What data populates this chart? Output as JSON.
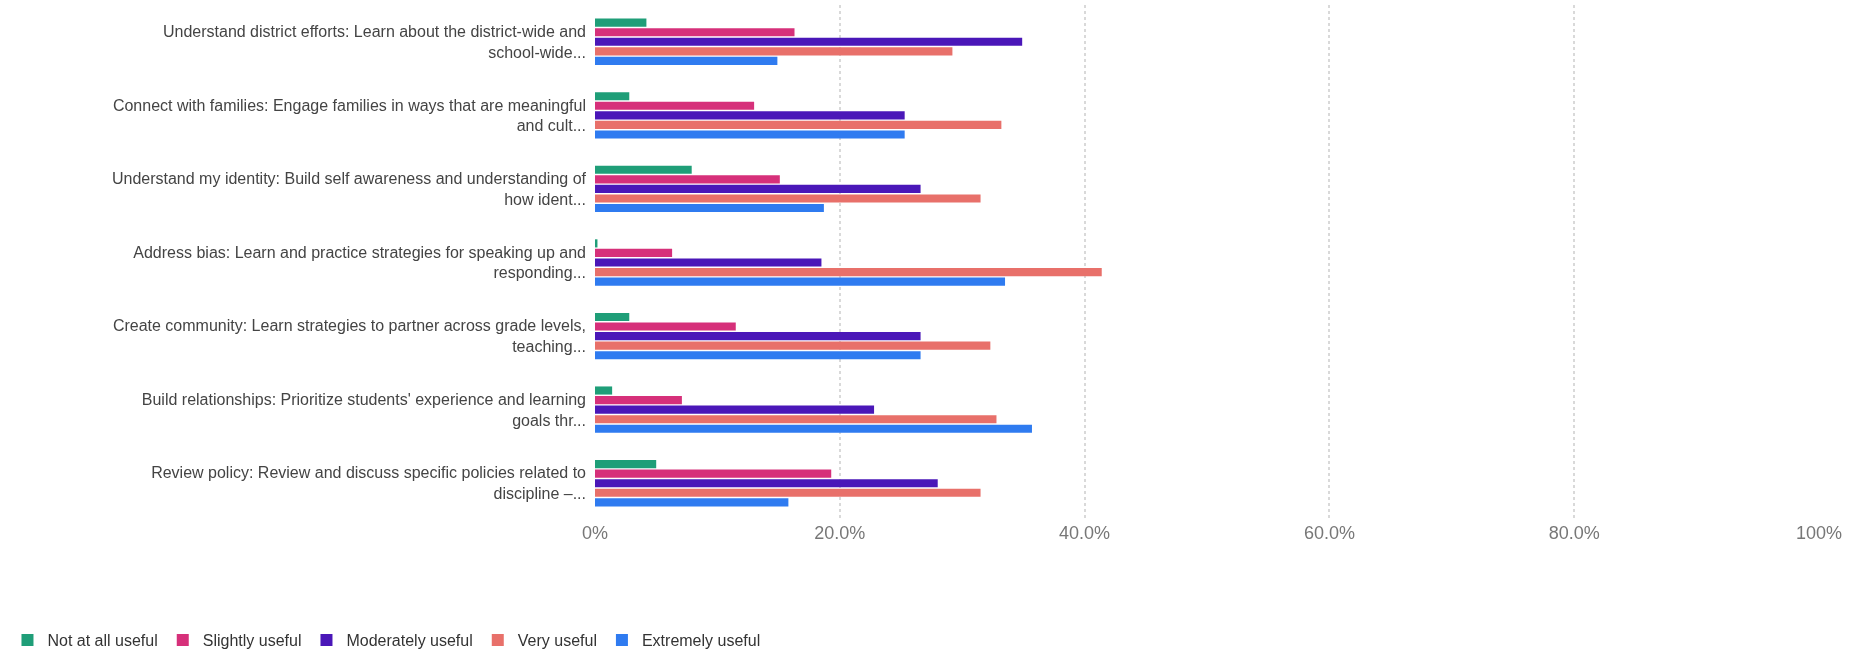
{
  "chart_data": {
    "type": "bar",
    "orientation": "horizontal",
    "categories": [
      "Understand district efforts: Learn about the district-wide and school-wide...",
      "Connect with families: Engage families in ways that are meaningful and cult...",
      "Understand my identity: Build self awareness and understanding of how ident...",
      "Address bias: Learn and practice strategies for speaking up and responding...",
      "Create community: Learn strategies to partner across grade levels, teaching...",
      "Build relationships: Prioritize students' experience and learning goals thr...",
      "Review policy: Review and discuss specific policies related to discipline –..."
    ],
    "series": [
      {
        "name": "Not at all useful",
        "color": "#1f9e78",
        "values": [
          4.2,
          2.8,
          7.9,
          0.2,
          2.8,
          1.4,
          5.0
        ]
      },
      {
        "name": "Slightly useful",
        "color": "#d6307a",
        "values": [
          16.3,
          13.0,
          15.1,
          6.3,
          11.5,
          7.1,
          19.3
        ]
      },
      {
        "name": "Moderately useful",
        "color": "#4a17b8",
        "values": [
          34.9,
          25.3,
          26.6,
          18.5,
          26.6,
          22.8,
          28.0
        ]
      },
      {
        "name": "Very useful",
        "color": "#e8706a",
        "values": [
          29.2,
          33.2,
          31.5,
          41.4,
          32.3,
          32.8,
          31.5
        ]
      },
      {
        "name": "Extremely useful",
        "color": "#2f7bf0",
        "values": [
          14.9,
          25.3,
          18.7,
          33.5,
          26.6,
          35.7,
          15.8
        ]
      }
    ],
    "xlim": [
      0,
      100
    ],
    "xticks": [
      {
        "value": 0,
        "label": "0%"
      },
      {
        "value": 20,
        "label": "20.0%"
      },
      {
        "value": 40,
        "label": "40.0%"
      },
      {
        "value": 60,
        "label": "60.0%"
      },
      {
        "value": 80,
        "label": "80.0%"
      },
      {
        "value": 100,
        "label": "100%"
      }
    ],
    "grid": "x",
    "legend": "bottom left"
  }
}
